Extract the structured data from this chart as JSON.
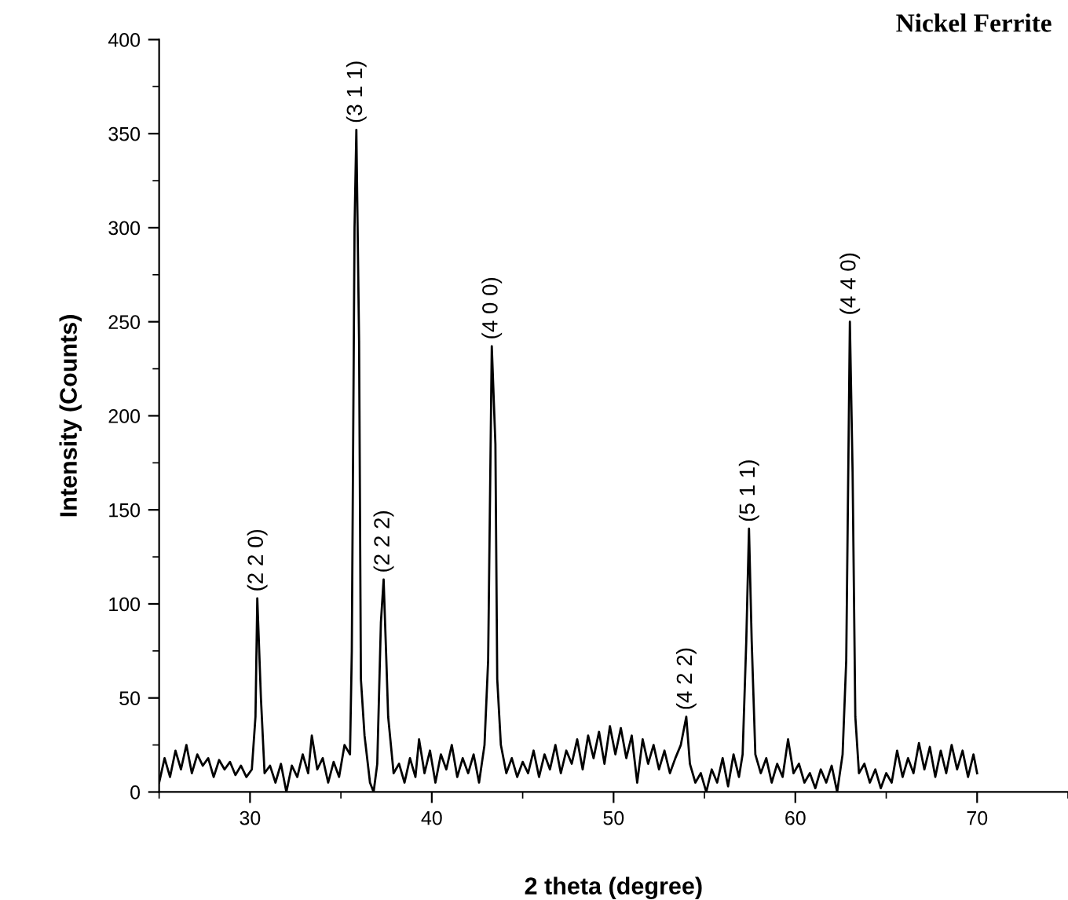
{
  "chart_data": {
    "type": "line",
    "title": "Nickel Ferrite",
    "xlabel": "2 theta (degree)",
    "ylabel": "Intensity (Counts)",
    "xlim": [
      25,
      75
    ],
    "ylim": [
      0,
      400
    ],
    "xticks": [
      {
        "value": 25,
        "label": null
      },
      30,
      {
        "value": 35,
        "label": null
      },
      40,
      {
        "value": 45,
        "label": null
      },
      50,
      {
        "value": 55,
        "label": null
      },
      60,
      {
        "value": 65,
        "label": null
      },
      70,
      {
        "value": 75,
        "label": null
      }
    ],
    "yticks": [
      0,
      {
        "value": 25,
        "label": null
      },
      50,
      {
        "value": 75,
        "label": null
      },
      100,
      {
        "value": 125,
        "label": null
      },
      150,
      {
        "value": 175,
        "label": null
      },
      200,
      {
        "value": 225,
        "label": null
      },
      250,
      {
        "value": 275,
        "label": null
      },
      300,
      {
        "value": 325,
        "label": null
      },
      350,
      {
        "value": 375,
        "label": null
      },
      400
    ],
    "grid": false,
    "legend": false,
    "marker": "none",
    "line_style": "solid",
    "series": [
      {
        "color": "#000000",
        "x": [
          25.0,
          25.3,
          25.6,
          25.9,
          26.2,
          26.5,
          26.8,
          27.1,
          27.4,
          27.7,
          28.0,
          28.3,
          28.6,
          28.9,
          29.2,
          29.5,
          29.8,
          30.1,
          30.3,
          30.4,
          30.6,
          30.8,
          31.1,
          31.4,
          31.7,
          32.0,
          32.3,
          32.6,
          32.9,
          33.2,
          33.4,
          33.7,
          34.0,
          34.3,
          34.6,
          34.9,
          35.2,
          35.5,
          35.6,
          35.75,
          35.85,
          36.0,
          36.1,
          36.3,
          36.6,
          36.8,
          37.0,
          37.2,
          37.35,
          37.5,
          37.6,
          37.9,
          38.2,
          38.5,
          38.8,
          39.1,
          39.3,
          39.6,
          39.9,
          40.2,
          40.5,
          40.8,
          41.1,
          41.4,
          41.7,
          42.0,
          42.3,
          42.6,
          42.9,
          43.1,
          43.3,
          43.5,
          43.6,
          43.8,
          44.1,
          44.4,
          44.7,
          45.0,
          45.3,
          45.6,
          45.9,
          46.2,
          46.5,
          46.8,
          47.1,
          47.4,
          47.7,
          48.0,
          48.3,
          48.6,
          48.9,
          49.2,
          49.5,
          49.8,
          50.1,
          50.4,
          50.7,
          51.0,
          51.3,
          51.6,
          51.9,
          52.2,
          52.5,
          52.8,
          53.1,
          53.4,
          53.7,
          54.0,
          54.2,
          54.5,
          54.8,
          55.1,
          55.4,
          55.7,
          56.0,
          56.3,
          56.6,
          56.9,
          57.1,
          57.3,
          57.45,
          57.6,
          57.8,
          58.1,
          58.4,
          58.7,
          59.0,
          59.3,
          59.6,
          59.9,
          60.2,
          60.5,
          60.8,
          61.1,
          61.4,
          61.7,
          62.0,
          62.3,
          62.6,
          62.8,
          63.0,
          63.15,
          63.3,
          63.5,
          63.8,
          64.1,
          64.4,
          64.7,
          65.0,
          65.3,
          65.6,
          65.9,
          66.2,
          66.5,
          66.8,
          67.1,
          67.4,
          67.7,
          68.0,
          68.3,
          68.6,
          68.9,
          69.2,
          69.5,
          69.8,
          70.0
        ],
        "values": [
          5,
          18,
          8,
          22,
          12,
          25,
          10,
          20,
          14,
          18,
          8,
          17,
          12,
          16,
          9,
          14,
          8,
          12,
          40,
          103,
          50,
          10,
          14,
          5,
          15,
          0,
          14,
          8,
          20,
          10,
          30,
          12,
          18,
          5,
          16,
          8,
          25,
          20,
          75,
          300,
          352,
          240,
          60,
          30,
          5,
          0,
          15,
          90,
          113,
          70,
          40,
          10,
          15,
          5,
          18,
          8,
          28,
          10,
          22,
          5,
          20,
          12,
          25,
          8,
          18,
          10,
          20,
          5,
          25,
          70,
          237,
          185,
          60,
          25,
          10,
          18,
          8,
          16,
          10,
          22,
          8,
          20,
          12,
          25,
          10,
          22,
          15,
          28,
          12,
          30,
          18,
          32,
          15,
          35,
          20,
          34,
          18,
          30,
          5,
          28,
          15,
          25,
          12,
          22,
          10,
          18,
          25,
          40,
          15,
          5,
          10,
          0,
          12,
          5,
          18,
          3,
          20,
          8,
          20,
          80,
          140,
          80,
          20,
          10,
          18,
          5,
          15,
          8,
          28,
          10,
          15,
          5,
          10,
          2,
          12,
          5,
          14,
          0,
          20,
          70,
          250,
          170,
          40,
          10,
          15,
          5,
          12,
          2,
          10,
          5,
          22,
          8,
          18,
          10,
          26,
          12,
          24,
          8,
          22,
          10,
          25,
          12,
          22,
          8,
          20,
          10
        ]
      }
    ],
    "annotations": [
      {
        "text": "(2 2 0)",
        "x": 30.4,
        "y": 103
      },
      {
        "text": "(3 1 1)",
        "x": 35.85,
        "y": 352
      },
      {
        "text": "(2 2 2)",
        "x": 37.35,
        "y": 113
      },
      {
        "text": "(4 0 0)",
        "x": 43.3,
        "y": 237
      },
      {
        "text": "(4 2 2)",
        "x": 54.0,
        "y": 40
      },
      {
        "text": "(5 1 1)",
        "x": 57.45,
        "y": 140
      },
      {
        "text": "(4 4 0)",
        "x": 63.0,
        "y": 250
      }
    ]
  }
}
